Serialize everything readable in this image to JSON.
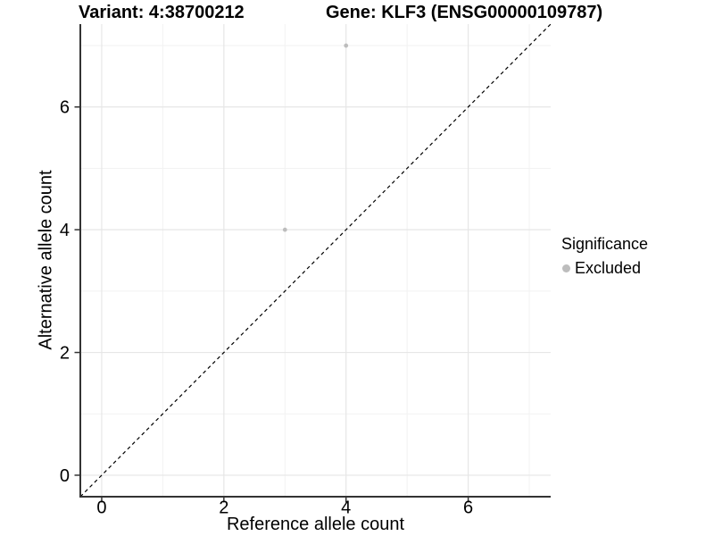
{
  "chart_data": {
    "type": "scatter",
    "title_left": "Variant: 4:38700212",
    "title_right": "Gene: KLF3 (ENSG00000109787)",
    "xlabel": "Reference allele count",
    "ylabel": "Alternative allele count",
    "xlim": [
      -0.35,
      7.35
    ],
    "ylim": [
      -0.35,
      7.35
    ],
    "x_major_ticks": [
      0,
      2,
      4,
      6
    ],
    "y_major_ticks": [
      0,
      2,
      4,
      6
    ],
    "x_minor_gridlines": [
      1,
      3,
      5,
      7
    ],
    "y_minor_gridlines": [
      1,
      3,
      5,
      7
    ],
    "grid": "on",
    "series": [
      {
        "name": "Excluded",
        "color": "#bdbdbd",
        "points": [
          {
            "x": 4,
            "y": 7
          },
          {
            "x": 3,
            "y": 4
          }
        ]
      }
    ],
    "reference_line": {
      "type": "identity",
      "equation": "y = x",
      "style": "dashed",
      "color": "#000000"
    },
    "legend": {
      "title": "Significance",
      "position": "right",
      "items": [
        {
          "label": "Excluded",
          "color": "#bdbdbd"
        }
      ]
    },
    "colors": {
      "background": "#ffffff",
      "axis_line": "#333333",
      "tick_mark": "#333333",
      "grid_major": "#e6e6e6",
      "grid_minor": "#f2f2f2",
      "text": "#000000"
    }
  }
}
